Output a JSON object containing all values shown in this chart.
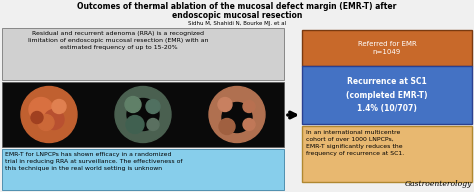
{
  "title_line1": "Outcomes of thermal ablation of the mucosal defect margin (EMR-T) after",
  "title_line2": "endoscopic mucosal resection",
  "authors": "Sidhu M, Shahidi N, Bourke MJ. et al",
  "top_left_text": "Residual and recurrent adenoma (RRA) is a recognized\nlimitation of endoscopic mucosal resection (EMR) with an\nestimated frequency of up to 15-20%",
  "bottom_left_text": "EMR-T for LNPCPs has shown efficacy in a randomized\ntrial in reducing RRA at surveillance. The effectiveness of\nthis technique in the real world setting is unknown",
  "orange_box_text": "Referred for EMR\nn=1049",
  "blue_box_text": "Recurrence at SC1\n(completed EMR-T)\n1.4% (10/707)",
  "bottom_right_text": "In an international multicentre\ncohort of over 1000 LNPCPs,\nEMR-T significantly reduces the\nfrequency of recurrence at SC1.",
  "journal": "Gastroenterology",
  "bg_color": "#f0f0f0",
  "title_color": "#000000",
  "top_left_box_color": "#d0d0d0",
  "bottom_left_box_color": "#87ceeb",
  "orange_box_color": "#c8692a",
  "blue_box_color": "#4472c4",
  "bottom_right_box_color": "#e8b870",
  "arrow_color": "#000000"
}
